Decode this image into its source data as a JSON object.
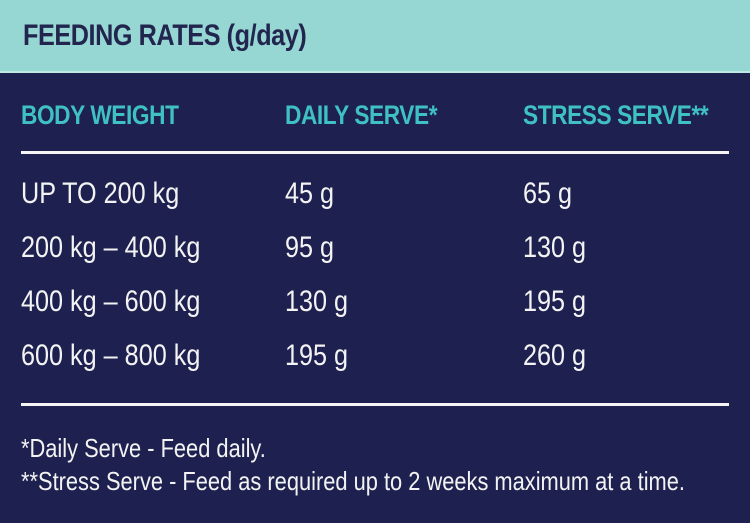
{
  "title": "FEEDING RATES (g/day)",
  "colors": {
    "band_bg": "#96d6d3",
    "body_bg": "#1e2150",
    "accent_teal": "#3fc1c3",
    "title_navy": "#22264f",
    "text_light": "#f3f3f3"
  },
  "table": {
    "columns": [
      "BODY WEIGHT",
      "DAILY SERVE*",
      "STRESS SERVE**"
    ],
    "rows": [
      {
        "body_weight": "UP TO 200 kg",
        "daily_serve": "45 g",
        "stress_serve": "65 g"
      },
      {
        "body_weight": "200 kg – 400 kg",
        "daily_serve": "95 g",
        "stress_serve": "130 g"
      },
      {
        "body_weight": "400 kg – 600 kg",
        "daily_serve": "130 g",
        "stress_serve": "195 g"
      },
      {
        "body_weight": "600 kg – 800 kg",
        "daily_serve": "195 g",
        "stress_serve": "260 g"
      }
    ]
  },
  "footnotes": [
    "*Daily Serve - Feed daily.",
    "**Stress Serve - Feed as required up to 2 weeks maximum at a time."
  ]
}
